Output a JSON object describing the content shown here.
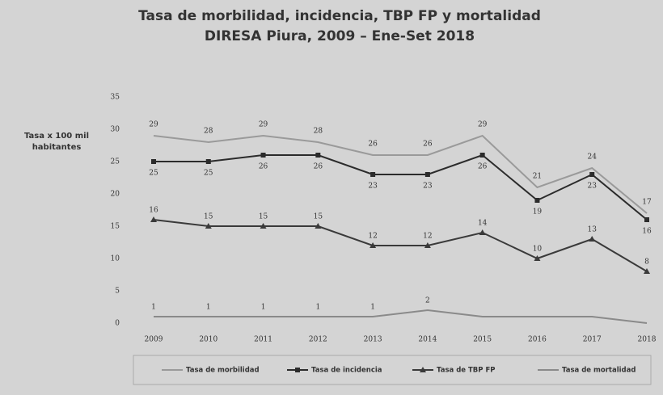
{
  "chart_data": {
    "type": "line",
    "title": "Tasa de morbilidad, incidencia, TBP FP y mortalidad",
    "subtitle": "DIRESA  Piura,  2009 – Ene-Set 2018",
    "y_label": "Tasa x 100 mil habitantes",
    "categories": [
      "2009",
      "2010",
      "2011",
      "2012",
      "2013",
      "2014",
      "2015",
      "2016",
      "2017",
      "2018"
    ],
    "series": [
      {
        "name": "Tasa de morbilidad",
        "color": "#9a9a9a",
        "marker": "none",
        "values": [
          29,
          28,
          29,
          28,
          26,
          26,
          29,
          21,
          24,
          17
        ]
      },
      {
        "name": "Tasa de incidencia",
        "color": "#2b2b2b",
        "marker": "square",
        "values": [
          25,
          25,
          26,
          26,
          23,
          23,
          26,
          19,
          23,
          16
        ]
      },
      {
        "name": "Tasa de TBP FP",
        "color": "#3a3a3a",
        "marker": "triangle",
        "values": [
          16,
          15,
          15,
          15,
          12,
          12,
          14,
          10,
          13,
          8
        ]
      },
      {
        "name": "Tasa de mortalidad",
        "color": "#8a8a8a",
        "marker": "none",
        "values": [
          1,
          1,
          1,
          1,
          1,
          2,
          1,
          1,
          1,
          0
        ],
        "value_labels": [
          "1",
          "1",
          "1",
          "1",
          "1",
          "2",
          null,
          null,
          null,
          null
        ]
      }
    ],
    "ylim": [
      0,
      35
    ],
    "yticks": [
      0,
      5,
      10,
      15,
      20,
      25,
      30,
      35
    ],
    "legend": "bottom"
  }
}
